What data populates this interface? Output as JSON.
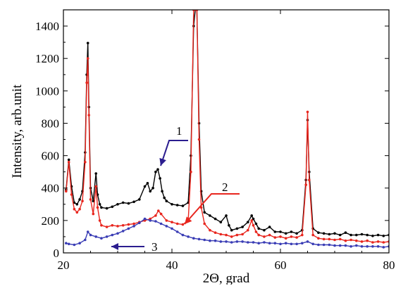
{
  "chart_data": {
    "type": "line",
    "title": "",
    "xlabel": "2Θ, grad",
    "ylabel": "Intensity, arb.unit",
    "xlim": [
      20,
      80
    ],
    "ylim": [
      0,
      1500
    ],
    "x_ticks": [
      20,
      40,
      60,
      80
    ],
    "y_ticks": [
      0,
      200,
      400,
      600,
      800,
      1000,
      1200,
      1400
    ],
    "grid": false,
    "legend": "none",
    "annotations": [
      {
        "label": "1",
        "series_index": 0,
        "color": "#2b1d8f",
        "line_color": "#2b1d8f",
        "target": [
          37.4,
          480
        ]
      },
      {
        "label": "2",
        "series_index": 1,
        "color": "#000000",
        "line_color": "#e8261e",
        "target": [
          42.5,
          215
        ]
      },
      {
        "label": "3",
        "series_index": 2,
        "color": "#000000",
        "line_color": "#2b1d8f",
        "target": [
          28.8,
          45
        ]
      }
    ],
    "series": [
      {
        "color": "#000000",
        "x": [
          20.5,
          21.0,
          21.5,
          22.0,
          22.5,
          23.0,
          23.5,
          24.0,
          24.3,
          24.5,
          24.7,
          25.0,
          25.5,
          26.0,
          26.3,
          26.7,
          27.0,
          28.0,
          29.0,
          30.0,
          31.0,
          32.0,
          33.0,
          34.0,
          35.0,
          35.5,
          36.0,
          36.5,
          37.0,
          37.4,
          37.8,
          38.2,
          38.6,
          39.0,
          40.0,
          41.0,
          42.0,
          43.0,
          43.5,
          44.0,
          44.3,
          44.6,
          45.0,
          45.4,
          46.0,
          47.0,
          48.0,
          49.0,
          50.0,
          50.5,
          51.0,
          52.0,
          53.0,
          54.0,
          54.7,
          55.0,
          55.5,
          56.0,
          57.0,
          58.0,
          59.0,
          60.0,
          61.0,
          62.0,
          63.0,
          64.0,
          64.7,
          65.0,
          65.3,
          66.0,
          67.0,
          68.0,
          69.0,
          70.0,
          71.0,
          72.0,
          73.0,
          74.0,
          75.0,
          76.0,
          77.0,
          78.0,
          79.0,
          80.0
        ],
        "y": [
          390,
          575,
          410,
          310,
          300,
          330,
          380,
          620,
          1100,
          1295,
          900,
          400,
          320,
          490,
          360,
          300,
          280,
          275,
          285,
          300,
          310,
          305,
          315,
          330,
          410,
          430,
          380,
          400,
          500,
          515,
          460,
          380,
          340,
          320,
          300,
          295,
          290,
          310,
          600,
          1400,
          1500,
          1500,
          800,
          380,
          250,
          230,
          210,
          190,
          230,
          170,
          140,
          150,
          160,
          190,
          230,
          210,
          180,
          150,
          140,
          160,
          130,
          130,
          120,
          130,
          120,
          140,
          450,
          820,
          500,
          150,
          125,
          120,
          115,
          120,
          110,
          125,
          110,
          110,
          115,
          110,
          105,
          110,
          105,
          110
        ]
      },
      {
        "color": "#e8261e",
        "x": [
          20.5,
          21.0,
          21.5,
          22.0,
          22.5,
          23.0,
          23.5,
          24.0,
          24.3,
          24.5,
          24.7,
          25.0,
          25.5,
          26.0,
          26.3,
          26.7,
          27.0,
          28.0,
          29.0,
          30.0,
          31.0,
          32.0,
          33.0,
          34.0,
          35.0,
          36.0,
          37.0,
          37.5,
          38.0,
          39.0,
          40.0,
          41.0,
          42.0,
          43.0,
          43.5,
          44.0,
          44.3,
          44.6,
          45.0,
          45.4,
          46.0,
          47.0,
          48.0,
          49.0,
          50.0,
          51.0,
          52.0,
          53.0,
          54.0,
          54.7,
          55.0,
          55.5,
          56.0,
          57.0,
          58.0,
          59.0,
          60.0,
          61.0,
          62.0,
          63.0,
          64.0,
          64.7,
          65.0,
          65.3,
          66.0,
          67.0,
          68.0,
          69.0,
          70.0,
          71.0,
          72.0,
          73.0,
          74.0,
          75.0,
          76.0,
          77.0,
          78.0,
          79.0,
          80.0
        ],
        "y": [
          380,
          560,
          360,
          270,
          250,
          270,
          320,
          560,
          1050,
          1200,
          850,
          330,
          240,
          410,
          280,
          200,
          170,
          160,
          170,
          165,
          170,
          175,
          180,
          190,
          200,
          210,
          230,
          260,
          240,
          200,
          190,
          180,
          175,
          200,
          500,
          1500,
          1500,
          1500,
          700,
          280,
          180,
          140,
          125,
          115,
          110,
          100,
          110,
          115,
          140,
          200,
          170,
          130,
          110,
          100,
          110,
          95,
          100,
          90,
          100,
          95,
          110,
          420,
          870,
          450,
          110,
          90,
          85,
          85,
          80,
          85,
          75,
          80,
          75,
          70,
          75,
          65,
          70,
          65,
          70
        ]
      },
      {
        "color": "#3a3db5",
        "x": [
          20.5,
          21.0,
          22.0,
          23.0,
          24.0,
          24.5,
          25.0,
          26.0,
          27.0,
          28.0,
          29.0,
          30.0,
          31.0,
          32.0,
          33.0,
          34.0,
          35.0,
          36.0,
          37.0,
          38.0,
          39.0,
          40.0,
          41.0,
          42.0,
          43.0,
          44.0,
          45.0,
          46.0,
          47.0,
          48.0,
          49.0,
          50.0,
          51.0,
          52.0,
          53.0,
          54.0,
          55.0,
          56.0,
          57.0,
          58.0,
          59.0,
          60.0,
          61.0,
          62.0,
          63.0,
          64.0,
          65.0,
          66.0,
          67.0,
          68.0,
          69.0,
          70.0,
          71.0,
          72.0,
          73.0,
          74.0,
          75.0,
          76.0,
          77.0,
          78.0,
          79.0,
          80.0
        ],
        "y": [
          60,
          55,
          50,
          60,
          80,
          130,
          110,
          100,
          90,
          100,
          110,
          120,
          135,
          150,
          165,
          185,
          210,
          200,
          195,
          180,
          165,
          150,
          130,
          110,
          100,
          90,
          85,
          80,
          75,
          75,
          70,
          70,
          65,
          70,
          70,
          65,
          65,
          60,
          65,
          60,
          60,
          55,
          60,
          55,
          55,
          60,
          70,
          55,
          50,
          50,
          50,
          45,
          45,
          45,
          40,
          45,
          40,
          40,
          40,
          40,
          35,
          40
        ]
      }
    ]
  }
}
